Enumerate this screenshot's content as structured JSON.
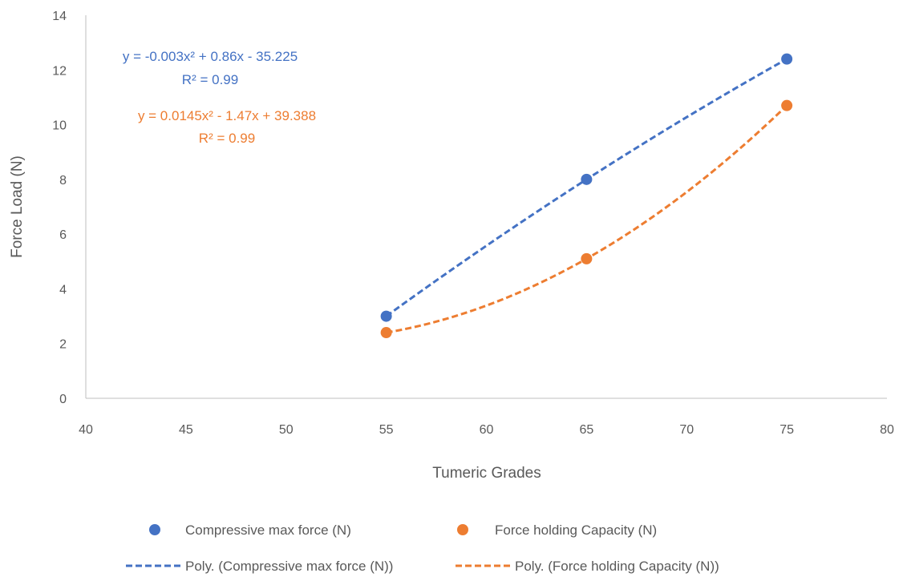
{
  "chart_data": {
    "type": "scatter",
    "xlabel": "Tumeric Grades",
    "ylabel": "Force Load (N)",
    "xlim": [
      40,
      80
    ],
    "ylim": [
      0,
      14
    ],
    "xticks": [
      40,
      45,
      50,
      55,
      60,
      65,
      70,
      75,
      80
    ],
    "yticks": [
      0,
      2,
      4,
      6,
      8,
      10,
      12,
      14
    ],
    "grid": false,
    "legend_position": "bottom",
    "series": [
      {
        "name": "Compressive max force (N)",
        "color": "#4472C4",
        "points": [
          {
            "x": 55,
            "y": 3.0
          },
          {
            "x": 65,
            "y": 8.0
          },
          {
            "x": 75,
            "y": 12.4
          }
        ],
        "trendline": {
          "name": "Poly. (Compressive max force (N))",
          "type": "poly2",
          "coefficients": [
            -0.003,
            0.86,
            -35.225
          ],
          "equation": "y = -0.003x² + 0.86x - 35.225",
          "r2": "R² = 0.99"
        }
      },
      {
        "name": "Force holding Capacity (N)",
        "color": "#ED7D31",
        "points": [
          {
            "x": 55,
            "y": 2.4
          },
          {
            "x": 65,
            "y": 5.1
          },
          {
            "x": 75,
            "y": 10.7
          }
        ],
        "trendline": {
          "name": "Poly. (Force holding Capacity (N))",
          "type": "poly2",
          "coefficients": [
            0.0145,
            -1.47,
            39.388
          ],
          "equation": "y = 0.0145x² - 1.47x + 39.388",
          "r2": "R² = 0.99"
        }
      }
    ]
  }
}
